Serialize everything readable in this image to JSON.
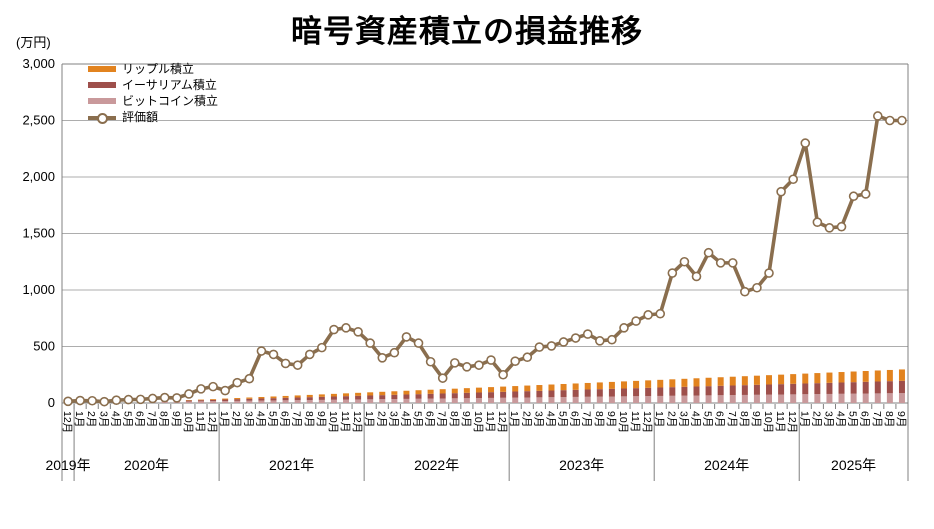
{
  "title": "暗号資産積立の損益推移",
  "y_axis_unit": "(万円)",
  "colors": {
    "ripple": "#E2831F",
    "ethereum": "#9E4F4B",
    "bitcoin": "#C9999B",
    "valuation_line": "#8A6E4E",
    "marker_fill": "#FFFFFF",
    "gridline": "#ADADAD",
    "axis_border": "#808080",
    "text": "#000000"
  },
  "chart_data": {
    "type": "combo: stacked bar + line",
    "title": "暗号資産積立の損益推移",
    "ylabel": "(万円)",
    "ylim": [
      0,
      3000
    ],
    "y_tick_values": [
      0,
      500,
      1000,
      1500,
      2000,
      2500,
      3000
    ],
    "y_tick_labels": [
      "0",
      "500",
      "1,000",
      "1,500",
      "2,000",
      "2,500",
      "3,000"
    ],
    "grid": "horizontal",
    "legend_position": "top-left-inside",
    "x_months": [
      "12月",
      "1月",
      "2月",
      "3月",
      "4月",
      "5月",
      "6月",
      "7月",
      "8月",
      "9月",
      "10月",
      "11月",
      "12月",
      "1月",
      "2月",
      "3月",
      "4月",
      "5月",
      "6月",
      "7月",
      "8月",
      "9月",
      "10月",
      "11月",
      "12月",
      "1月",
      "2月",
      "3月",
      "4月",
      "5月",
      "6月",
      "7月",
      "8月",
      "9月",
      "10月",
      "11月",
      "12月",
      "1月",
      "2月",
      "3月",
      "4月",
      "5月",
      "6月",
      "7月",
      "8月",
      "9月",
      "10月",
      "11月",
      "12月",
      "1月",
      "2月",
      "3月",
      "4月",
      "5月",
      "6月",
      "7月",
      "8月",
      "9月",
      "10月",
      "11月",
      "12月",
      "1月",
      "2月",
      "3月",
      "4月",
      "5月",
      "6月",
      "7月",
      "8月",
      "9月"
    ],
    "year_groups": [
      {
        "label": "2019年",
        "months": 1
      },
      {
        "label": "2020年",
        "months": 12
      },
      {
        "label": "2021年",
        "months": 12
      },
      {
        "label": "2022年",
        "months": 12
      },
      {
        "label": "2023年",
        "months": 12
      },
      {
        "label": "2024年",
        "months": 12
      },
      {
        "label": "2025年",
        "months": 9
      }
    ],
    "series": [
      {
        "name": "リップル積立",
        "type": "bar",
        "color": "#E2831F",
        "values": [
          0,
          0,
          0,
          0,
          0,
          0,
          0,
          0,
          0,
          1.7,
          3.3,
          5,
          6.6,
          8.3,
          9.9,
          11.6,
          13.2,
          14.9,
          16.5,
          18.2,
          19.8,
          21.5,
          23.1,
          24.8,
          26.4,
          28.1,
          29.7,
          31.4,
          33,
          34.7,
          36.3,
          38,
          39.6,
          41.3,
          42.9,
          44.6,
          46.2,
          47.9,
          49.5,
          51.2,
          52.8,
          54.5,
          56.1,
          57.8,
          59.4,
          61.1,
          62.7,
          64.4,
          66,
          67.7,
          69.3,
          71,
          72.6,
          74.3,
          75.9,
          77.6,
          79.2,
          80.9,
          82.5,
          84.2,
          85.8,
          87.5,
          89.1,
          90.8,
          92.4,
          94.1,
          95.7,
          97.4,
          99,
          100.7
        ]
      },
      {
        "name": "イーサリアム積立",
        "type": "bar",
        "color": "#9E4F4B",
        "values": [
          0,
          0,
          0,
          0,
          0,
          0,
          1.7,
          3.4,
          5.1,
          6.8,
          8.5,
          10.2,
          11.9,
          13.6,
          15.3,
          17,
          18.7,
          20.4,
          22.1,
          23.8,
          25.5,
          27.2,
          28.9,
          30.6,
          32.3,
          34,
          35.7,
          37.4,
          39.1,
          40.8,
          42.5,
          44.2,
          45.9,
          47.6,
          49.3,
          51,
          52.7,
          54.4,
          56.1,
          57.8,
          59.5,
          61.2,
          62.9,
          64.6,
          66.3,
          68,
          69.7,
          71.4,
          73.1,
          74.8,
          76.5,
          78.2,
          79.9,
          81.6,
          83.3,
          85,
          86.7,
          88.4,
          90.1,
          91.8,
          93.5,
          95.2,
          96.9,
          98.6,
          100.3,
          102,
          103.7,
          105.4,
          107.1,
          108.8
        ]
      },
      {
        "name": "ビットコイン積立",
        "type": "bar",
        "color": "#C9999B",
        "values": [
          1.3,
          2.5,
          3.8,
          5,
          6.3,
          7.5,
          8.8,
          10,
          11.3,
          12.5,
          13.8,
          15,
          16.3,
          17.5,
          18.8,
          20,
          21.3,
          22.5,
          23.8,
          25,
          26.3,
          27.5,
          28.8,
          30,
          31.3,
          32.5,
          33.8,
          35,
          36.3,
          37.5,
          38.8,
          40,
          41.3,
          42.5,
          43.8,
          45,
          46.3,
          47.5,
          48.8,
          50,
          51.3,
          52.5,
          53.8,
          55,
          56.3,
          57.5,
          58.8,
          60,
          61.3,
          62.5,
          63.8,
          65,
          66.3,
          67.5,
          68.8,
          70,
          71.3,
          72.5,
          73.8,
          75,
          76.3,
          77.5,
          78.8,
          80,
          81.3,
          82.5,
          83.8,
          85,
          86.3,
          87.5
        ]
      },
      {
        "name": "評価額",
        "type": "line",
        "color": "#8A6E4E",
        "values": [
          15,
          22,
          20,
          12,
          25,
          30,
          32,
          40,
          48,
          45,
          80,
          125,
          145,
          110,
          180,
          215,
          460,
          430,
          350,
          335,
          430,
          490,
          650,
          665,
          630,
          530,
          400,
          445,
          585,
          530,
          365,
          220,
          355,
          320,
          335,
          380,
          250,
          370,
          405,
          495,
          505,
          540,
          575,
          610,
          550,
          560,
          665,
          725,
          780,
          790,
          1150,
          1250,
          1120,
          1330,
          1240,
          1240,
          985,
          1020,
          1150,
          1870,
          1980,
          2300,
          1600,
          1550,
          1560,
          1830,
          1850,
          2540,
          2500,
          2500
        ]
      }
    ],
    "bar_stack_order_bottom_to_top": [
      "ビットコイン積立",
      "イーサリアム積立",
      "リップル積立"
    ]
  }
}
